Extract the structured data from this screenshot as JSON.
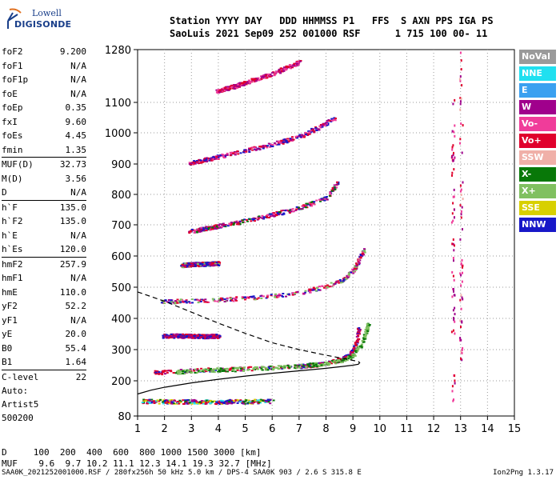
{
  "logo": {
    "line1": "Lowell",
    "line2": "DIGISONDE"
  },
  "header": {
    "line1": "Station YYYY DAY   DDD HHMMSS P1   FFS  S AXN PPS IGA PS",
    "line2": "SaoLuis 2021 Sep09 252 001000 RSF      1 715 100 00- 11"
  },
  "params": [
    [
      {
        "label": "foF2",
        "value": "9.200"
      },
      {
        "label": "foF1",
        "value": "N/A"
      },
      {
        "label": "foF1p",
        "value": "N/A"
      },
      {
        "label": "foE",
        "value": "N/A"
      },
      {
        "label": "foEp",
        "value": "0.35"
      },
      {
        "label": "fxI",
        "value": "9.60"
      },
      {
        "label": "foEs",
        "value": "4.45"
      },
      {
        "label": "fmin",
        "value": "1.35"
      }
    ],
    [
      {
        "label": "MUF(D)",
        "value": "32.73"
      },
      {
        "label": "M(D)",
        "value": "3.56"
      },
      {
        "label": "D",
        "value": "N/A"
      }
    ],
    [
      {
        "label": "h`F",
        "value": "135.0"
      },
      {
        "label": "h`F2",
        "value": "135.0"
      },
      {
        "label": "h`E",
        "value": "N/A"
      },
      {
        "label": "h`Es",
        "value": "120.0"
      }
    ],
    [
      {
        "label": "hmF2",
        "value": "257.9"
      },
      {
        "label": "hmF1",
        "value": "N/A"
      },
      {
        "label": "hmE",
        "value": "110.0"
      },
      {
        "label": "yF2",
        "value": "52.2"
      },
      {
        "label": "yF1",
        "value": "N/A"
      },
      {
        "label": "yE",
        "value": "20.0"
      },
      {
        "label": "B0",
        "value": "55.4"
      },
      {
        "label": "B1",
        "value": "1.64"
      }
    ],
    [
      {
        "label": "C-level",
        "value": "22"
      }
    ]
  ],
  "auto": {
    "line1": "Auto:",
    "line2": "Artist5",
    "line3": "500200"
  },
  "bottom": {
    "row1": "D     100  200  400  600  800 1000 1500 3000 [km]",
    "row2": "MUF    9.6  9.7 10.2 11.1 12.3 14.1 19.3 32.7 [MHz]"
  },
  "footer": {
    "left": "SAA0K_2021252001000.RSF / 280fx256h 50 kHz 5.0 km / DPS-4 SAA0K 903 / 2.6 S 315.8 E",
    "right": "Ion2Png 1.3.17"
  },
  "legend": [
    {
      "label": "NoVal",
      "color": "#9a9a9a"
    },
    {
      "label": "NNE",
      "color": "#20e0f0"
    },
    {
      "label": "E",
      "color": "#3aa0f0"
    },
    {
      "label": "W",
      "color": "#a0008c"
    },
    {
      "label": "Vo-",
      "color": "#f03c9a"
    },
    {
      "label": "Vo+",
      "color": "#e0002c"
    },
    {
      "label": "SSW",
      "color": "#f0b0a8"
    },
    {
      "label": "X-",
      "color": "#087808"
    },
    {
      "label": "X+",
      "color": "#80c060"
    },
    {
      "label": "SSE",
      "color": "#d8d000"
    },
    {
      "label": "NNW",
      "color": "#1818c8"
    }
  ],
  "chart_data": {
    "type": "scatter",
    "xlabel": "",
    "ylabel": "",
    "xlim": [
      1,
      15
    ],
    "ylim": [
      80,
      1280
    ],
    "x_ticks": [
      1,
      2,
      3,
      4,
      5,
      6,
      7,
      8,
      9,
      10,
      11,
      12,
      13,
      14,
      15
    ],
    "y_ticks": [
      80,
      200,
      300,
      400,
      500,
      600,
      700,
      800,
      900,
      1000,
      1100,
      1280
    ],
    "grid": true,
    "traces": [
      {
        "name": "O-trace F2",
        "x": [
          1.6,
          2,
          3,
          4,
          5,
          6,
          7,
          7.5,
          8,
          8.4,
          8.7,
          8.9,
          9.05,
          9.15,
          9.2
        ],
        "y": [
          228,
          230,
          235,
          238,
          240,
          243,
          248,
          252,
          258,
          266,
          276,
          290,
          310,
          340,
          375
        ]
      },
      {
        "name": "X-trace F2",
        "x": [
          2.4,
          3,
          4,
          5,
          6,
          7,
          8,
          8.6,
          9,
          9.3,
          9.45,
          9.55
        ],
        "y": [
          230,
          233,
          237,
          240,
          244,
          249,
          257,
          268,
          285,
          320,
          355,
          385
        ]
      },
      {
        "name": "2nd hop",
        "x": [
          1.8,
          3,
          4,
          5,
          6,
          7,
          8,
          8.6,
          9,
          9.2,
          9.4
        ],
        "y": [
          455,
          458,
          462,
          466,
          473,
          484,
          505,
          525,
          555,
          590,
          625
        ]
      },
      {
        "name": "3rd hop",
        "x": [
          2.9,
          3.5,
          4,
          5,
          6,
          7,
          8,
          8.4
        ],
        "y": [
          680,
          690,
          698,
          715,
          735,
          758,
          790,
          840
        ]
      },
      {
        "name": "4th hop",
        "x": [
          2.9,
          3.5,
          4,
          5,
          6,
          7,
          7.7,
          8.3
        ],
        "y": [
          905,
          915,
          925,
          945,
          965,
          990,
          1020,
          1050
        ]
      },
      {
        "name": "5th hop",
        "x": [
          3.9,
          4.5,
          5,
          6,
          7
        ],
        "y": [
          1140,
          1155,
          1170,
          1200,
          1240
        ]
      },
      {
        "name": "Es",
        "x": [
          1.1,
          1.5,
          2,
          2.5,
          3,
          3.5,
          4,
          4.4,
          5,
          5.5,
          6
        ],
        "y": [
          132,
          132,
          131,
          130,
          131,
          130,
          130,
          131,
          131,
          132,
          132
        ]
      },
      {
        "name": "Es 2nd hop",
        "x": [
          1.9,
          2.5,
          3,
          3.5,
          4
        ],
        "y": [
          345,
          346,
          345,
          344,
          345
        ]
      },
      {
        "name": "Es 3rd hop",
        "x": [
          2.6,
          3,
          3.5,
          4
        ],
        "y": [
          572,
          575,
          576,
          578
        ]
      },
      {
        "name": "vertical column 12.7",
        "x": [
          12.7,
          12.7
        ],
        "y": [
          130,
          1120
        ]
      },
      {
        "name": "vertical column 13.0",
        "x": [
          13,
          13
        ],
        "y": [
          180,
          1280
        ]
      }
    ],
    "profiles": [
      {
        "name": "electron density profile",
        "x": [
          1,
          1.5,
          2,
          3,
          4,
          5,
          6,
          7,
          8,
          8.6,
          9,
          9.2,
          9.25,
          9.2
        ],
        "y": [
          155,
          168,
          178,
          193,
          205,
          215,
          224,
          232,
          240,
          246,
          250,
          253,
          258,
          262
        ]
      },
      {
        "name": "extrapolated topside",
        "x": [
          1,
          1.5,
          2,
          3,
          4,
          5,
          6,
          7,
          8,
          8.6,
          9.2
        ],
        "y": [
          485,
          470,
          455,
          420,
          385,
          352,
          322,
          300,
          282,
          272,
          262
        ]
      }
    ]
  }
}
